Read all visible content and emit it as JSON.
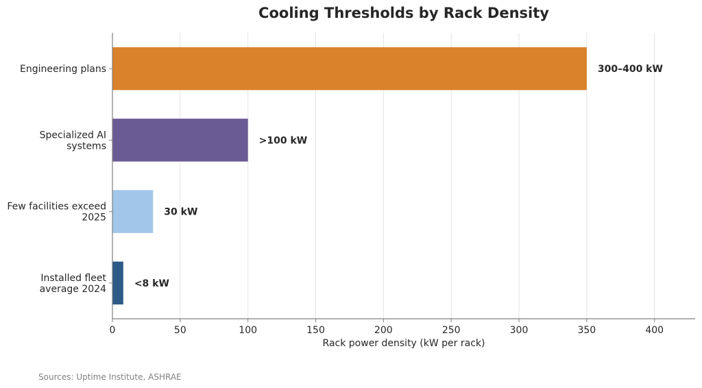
{
  "chart_data": {
    "type": "bar",
    "orientation": "horizontal",
    "title": "Cooling Thresholds by Rack Density",
    "xlabel": "Rack power density (kW per rack)",
    "ylabel": "",
    "xlim": [
      0,
      430
    ],
    "xticks": [
      0,
      50,
      100,
      150,
      200,
      250,
      300,
      350,
      400
    ],
    "grid": "vertical",
    "categories": [
      [
        "Engineering plans"
      ],
      [
        "Specialized AI",
        "systems"
      ],
      [
        "Few facilities exceed",
        "2025"
      ],
      [
        "Installed fleet",
        "average 2024"
      ]
    ],
    "values": [
      350,
      100,
      30,
      8
    ],
    "data_labels": [
      "300–400 kW",
      ">100 kW",
      "30 kW",
      "<8 kW"
    ],
    "colors": [
      "#D9822B",
      "#6B5B95",
      "#A1C6EA",
      "#2E5A87"
    ]
  },
  "footer": {
    "source": "Sources: Uptime Institute, ASHRAE"
  }
}
